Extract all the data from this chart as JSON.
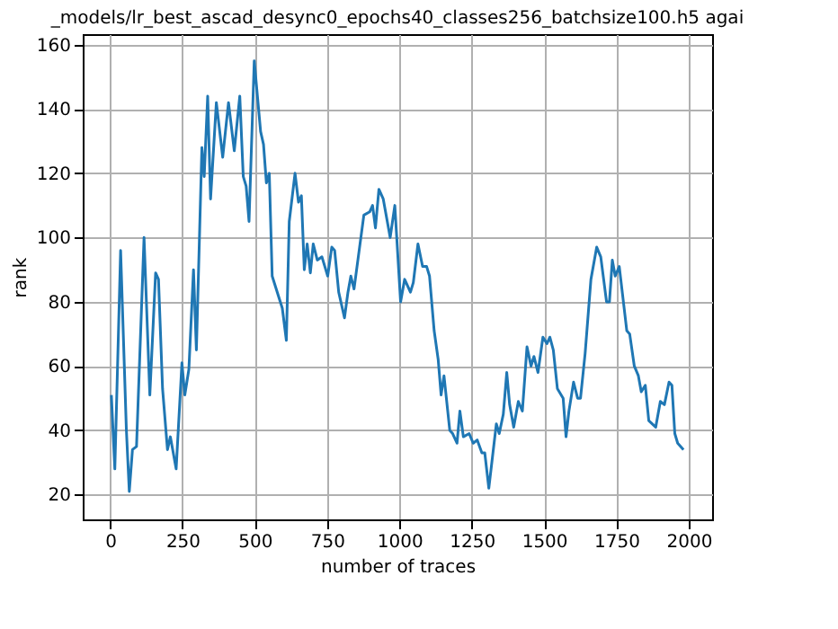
{
  "chart_data": {
    "type": "line",
    "title": "_models/lr_best_ascad_desync0_epochs40_classes256_batchsize100.h5 agai",
    "xlabel": "number of traces",
    "ylabel": "rank",
    "x": [
      4,
      16,
      36,
      56,
      66,
      77,
      91,
      117,
      137,
      157,
      167,
      181,
      198,
      208,
      228,
      248,
      258,
      272,
      288,
      298,
      317,
      325,
      337,
      347,
      367,
      389,
      409,
      429,
      448,
      460,
      470,
      480,
      498,
      520,
      530,
      540,
      550,
      560,
      581,
      595,
      609,
      619,
      639,
      651,
      661,
      671,
      681,
      692,
      702,
      716,
      732,
      752,
      766,
      776,
      790,
      810,
      822,
      832,
      843,
      877,
      897,
      907,
      917,
      929,
      944,
      968,
      984,
      1004,
      1018,
      1038,
      1048,
      1064,
      1080,
      1094,
      1104,
      1120,
      1134,
      1144,
      1154,
      1174,
      1184,
      1199,
      1209,
      1221,
      1241,
      1255,
      1269,
      1285,
      1295,
      1309,
      1335,
      1345,
      1359,
      1371,
      1381,
      1395,
      1411,
      1425,
      1441,
      1455,
      1465,
      1479,
      1496,
      1510,
      1520,
      1532,
      1546,
      1566,
      1576,
      1586,
      1602,
      1616,
      1626,
      1642,
      1662,
      1682,
      1696,
      1716,
      1726,
      1736,
      1746,
      1760,
      1786,
      1796,
      1812,
      1826,
      1836,
      1850,
      1862,
      1886,
      1902,
      1916,
      1932,
      1942,
      1952,
      1962,
      1982
    ],
    "series": [
      {
        "color": "#1f77b4",
        "values": [
          51,
          28,
          96,
          40,
          21,
          34,
          35,
          100,
          51,
          89,
          87,
          53,
          34,
          38,
          28,
          61,
          51,
          59,
          90,
          65,
          128,
          119,
          144,
          112,
          142,
          125,
          142,
          127,
          144,
          119,
          116,
          105,
          155,
          133,
          129,
          117,
          120,
          88,
          82,
          78,
          68,
          105,
          120,
          111,
          113,
          90,
          98,
          89,
          98,
          93,
          94,
          88,
          97,
          96,
          83,
          75,
          83,
          88,
          84,
          107,
          108,
          110,
          103,
          115,
          112,
          100,
          110,
          80,
          87,
          83,
          86,
          98,
          91,
          91,
          88,
          71,
          62,
          51,
          57,
          40,
          39,
          36,
          46,
          38,
          39,
          36,
          37,
          33,
          33,
          22,
          42,
          39,
          45,
          58,
          48,
          41,
          49,
          46,
          66,
          60,
          63,
          58,
          69,
          67,
          69,
          65,
          53,
          50,
          38,
          46,
          55,
          50,
          50,
          64,
          87,
          97,
          94,
          80,
          80,
          93,
          88,
          91,
          71,
          70,
          60,
          57,
          52,
          54,
          43,
          41,
          49,
          48,
          55,
          54,
          39,
          36,
          34
        ]
      }
    ],
    "xlim": [
      -95,
      2081
    ],
    "xticks": [
      0,
      250,
      500,
      750,
      1000,
      1250,
      1500,
      1750,
      2000
    ],
    "ylim": [
      12.3,
      163.3
    ],
    "yticks": [
      20,
      40,
      60,
      80,
      100,
      120,
      140,
      160
    ],
    "grid": true,
    "line_style": "solid",
    "marker": "none"
  }
}
